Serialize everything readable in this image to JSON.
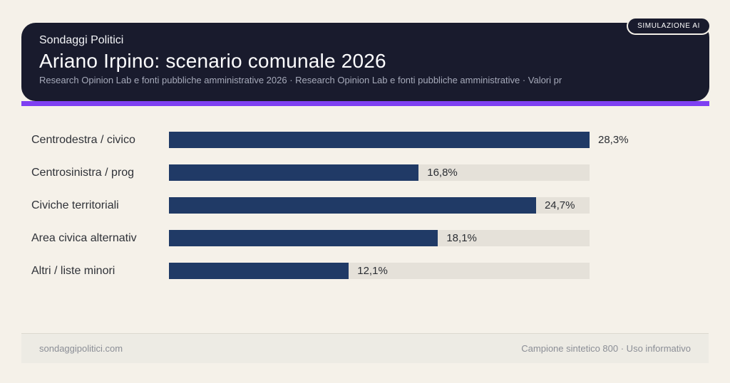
{
  "header": {
    "kicker": "Sondaggi Politici",
    "title": "Ariano Irpino: scenario comunale 2026",
    "subtitle": "Research Opinion Lab e fonti pubbliche amministrative 2026 · Research Opinion Lab e fonti pubbliche amministrative · Valori pr",
    "badge": "SIMULAZIONE AI"
  },
  "chart_data": {
    "type": "bar",
    "orientation": "horizontal",
    "title": "Ariano Irpino: scenario comunale 2026",
    "categories": [
      "Centrodestra / civico",
      "Centrosinistra / prog",
      "Civiche territoriali",
      "Area civica alternativ",
      "Altri / liste minori"
    ],
    "values": [
      28.3,
      16.8,
      24.7,
      18.1,
      12.1
    ],
    "value_labels": [
      "28,3%",
      "16,8%",
      "24,7%",
      "18,1%",
      "12,1%"
    ],
    "axis_max": 28.3,
    "grid": false,
    "legend": false,
    "bar_color": "#203a66",
    "track_color": "#e5e1d9"
  },
  "footer": {
    "left": "sondaggipolitici.com",
    "right": "Campione sintetico 800 · Uso informativo"
  },
  "colors": {
    "background": "#f5f1e9",
    "header_bg": "#191b2d",
    "accent_purple": "#7e3ff2",
    "title_text": "#fcfcfd",
    "subtitle_text": "#a6aaba",
    "label_text": "#2f3238",
    "footer_bg": "#edebe4",
    "footer_text": "#8b8e96"
  }
}
